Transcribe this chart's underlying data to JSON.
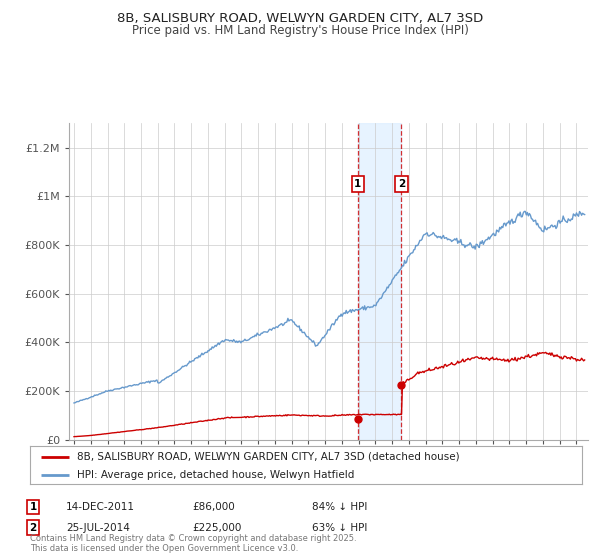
{
  "title": "8B, SALISBURY ROAD, WELWYN GARDEN CITY, AL7 3SD",
  "subtitle": "Price paid vs. HM Land Registry's House Price Index (HPI)",
  "legend_label_red": "8B, SALISBURY ROAD, WELWYN GARDEN CITY, AL7 3SD (detached house)",
  "legend_label_blue": "HPI: Average price, detached house, Welwyn Hatfield",
  "annotation1_date": "14-DEC-2011",
  "annotation1_price": "£86,000",
  "annotation1_pct": "84% ↓ HPI",
  "annotation2_date": "25-JUL-2014",
  "annotation2_price": "£225,000",
  "annotation2_pct": "63% ↓ HPI",
  "footer": "Contains HM Land Registry data © Crown copyright and database right 2025.\nThis data is licensed under the Open Government Licence v3.0.",
  "xlim": [
    1994.7,
    2025.7
  ],
  "ylim": [
    0,
    1300000
  ],
  "yticks": [
    0,
    200000,
    400000,
    600000,
    800000,
    1000000,
    1200000
  ],
  "ytick_labels": [
    "£0",
    "£200K",
    "£400K",
    "£600K",
    "£800K",
    "£1M",
    "£1.2M"
  ],
  "color_red": "#cc0000",
  "color_blue": "#6699cc",
  "color_shading": "#ddeeff",
  "vline1_x": 2011.95,
  "vline2_x": 2014.56,
  "marker1_x": 2011.95,
  "marker1_y": 86000,
  "marker2_x": 2014.56,
  "marker2_y": 225000,
  "background_color": "#ffffff",
  "grid_color": "#cccccc"
}
